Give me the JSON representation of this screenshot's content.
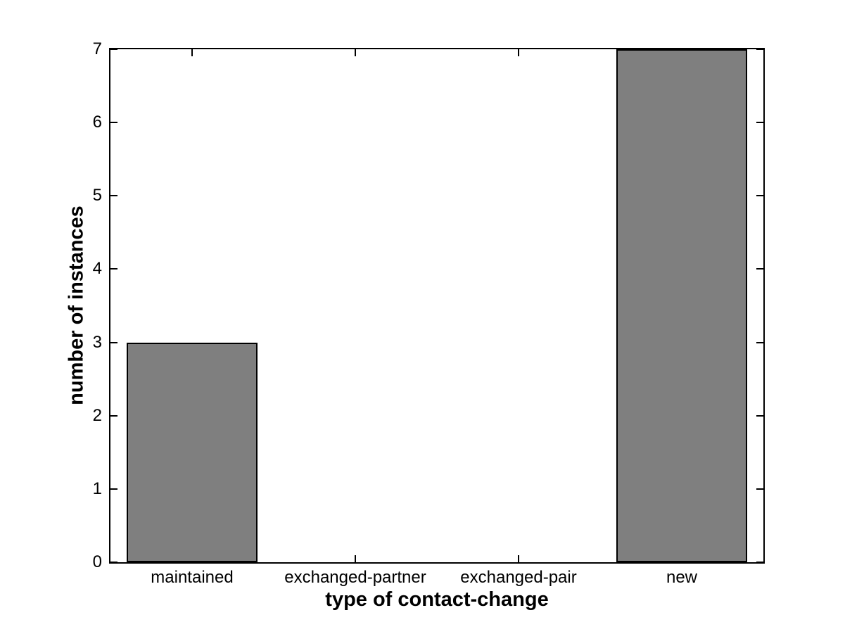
{
  "figure": {
    "background": "#ffffff"
  },
  "chart_data": {
    "type": "bar",
    "title": "",
    "categories": [
      "maintained",
      "exchanged-partner",
      "exchanged-pair",
      "new"
    ],
    "values": [
      3,
      0,
      0,
      7
    ],
    "xlabel": "type of contact-change",
    "ylabel": "number of instances",
    "ylim": [
      0,
      7
    ],
    "yticks": [
      0,
      1,
      2,
      3,
      4,
      5,
      6,
      7
    ],
    "ytick_labels": [
      "0",
      "1",
      "2",
      "3",
      "4",
      "5",
      "6",
      "7"
    ],
    "xlim_category_units": [
      0.5,
      4.5
    ],
    "bar_width_units": 0.8,
    "bar_color": "#7F7F7F",
    "bar_edge_color": "#000000",
    "axis_color": "#000000",
    "text_color": "#000000",
    "grid": false,
    "legend": null,
    "box": true,
    "tick_direction": "in"
  }
}
